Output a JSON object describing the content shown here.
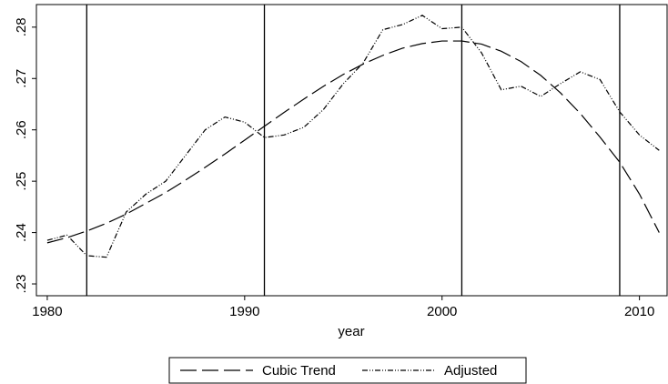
{
  "chart_data": {
    "type": "line",
    "x": [
      1980,
      1981,
      1982,
      1983,
      1984,
      1985,
      1986,
      1987,
      1988,
      1989,
      1990,
      1991,
      1992,
      1993,
      1994,
      1995,
      1996,
      1997,
      1998,
      1999,
      2000,
      2001,
      2002,
      2003,
      2004,
      2005,
      2006,
      2007,
      2008,
      2009,
      2010,
      2011
    ],
    "series": [
      {
        "name": "Cubic Trend",
        "color": "#000000",
        "dash": "long",
        "values": [
          0.238,
          0.239,
          0.2403,
          0.2418,
          0.2436,
          0.2457,
          0.2478,
          0.2502,
          0.2527,
          0.2553,
          0.258,
          0.2607,
          0.2634,
          0.266,
          0.2685,
          0.2708,
          0.2728,
          0.2745,
          0.2759,
          0.2768,
          0.2773,
          0.2773,
          0.2767,
          0.2753,
          0.2733,
          0.2706,
          0.2672,
          0.2632,
          0.2586,
          0.2537,
          0.2475,
          0.24
        ]
      },
      {
        "name": "Adjusted",
        "color": "#000000",
        "dash": "dash-dot",
        "values": [
          0.2385,
          0.2395,
          0.2355,
          0.2352,
          0.244,
          0.2475,
          0.25,
          0.255,
          0.26,
          0.2625,
          0.2615,
          0.2585,
          0.259,
          0.2605,
          0.264,
          0.269,
          0.273,
          0.2795,
          0.2805,
          0.2823,
          0.2797,
          0.28,
          0.275,
          0.2678,
          0.2685,
          0.2665,
          0.269,
          0.2713,
          0.2698,
          0.2635,
          0.259,
          0.256
        ]
      }
    ],
    "xlabel": "year",
    "xlim": [
      1979.45,
      2011.4
    ],
    "xticks": [
      1980,
      1990,
      2000,
      2010
    ],
    "ylim": [
      0.2277,
      0.2844
    ],
    "yticks": [
      {
        "value": 0.23,
        "label": ".23"
      },
      {
        "value": 0.24,
        "label": ".24"
      },
      {
        "value": 0.25,
        "label": ".25"
      },
      {
        "value": 0.26,
        "label": ".26"
      },
      {
        "value": 0.27,
        "label": ".27"
      },
      {
        "value": 0.28,
        "label": ".28"
      }
    ],
    "xlines": [
      1982,
      1991,
      2001,
      2009
    ],
    "legend": "bottom"
  }
}
